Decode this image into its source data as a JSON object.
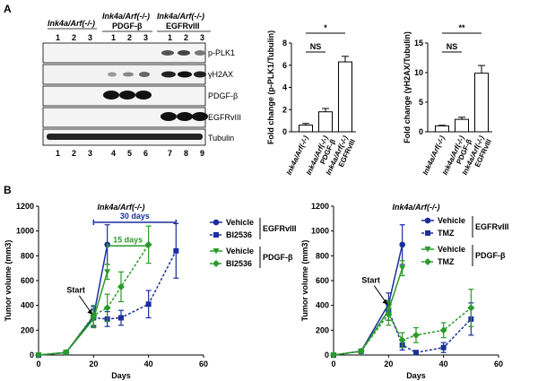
{
  "panel_a": {
    "letter": "A",
    "groups": [
      {
        "label": "Ink4a/Arf(-/-)",
        "lanes": [
          "1",
          "2",
          "3"
        ],
        "sublabel": ""
      },
      {
        "label": "Ink4a/Arf(-/-)",
        "lanes": [
          "1",
          "2",
          "3"
        ],
        "sublabel": "PDGF-β"
      },
      {
        "label": "Ink4a/Arf(-/-)",
        "lanes": [
          "1",
          "2",
          "3"
        ],
        "sublabel": "EGFRvIII"
      }
    ],
    "bands": [
      "p-PLK1",
      "γH2AX",
      "PDGF-β",
      "EGFRvIII",
      "Tubulin"
    ],
    "bottom_lanes": [
      "1",
      "2",
      "3",
      "4",
      "5",
      "6",
      "7",
      "8",
      "9"
    ]
  },
  "panel_b": {
    "letter": "B"
  },
  "colors": {
    "vehicle_egfr": "#1c2e9c",
    "bi_egfr": "#1c2e9c",
    "vehicle_pdgf": "#2a9a2a",
    "bi_pdgf": "#2a9a2a",
    "bar": "#ffffff",
    "axis": "#000000"
  },
  "chart_data": [
    {
      "type": "bar",
      "ylabel": "Fold change (p-PLK1/Tubulin)",
      "ylim": [
        0,
        8
      ],
      "yticks": [
        "0",
        "2",
        "4",
        "6",
        "8"
      ],
      "categories": [
        "Ink4a/Arf(-/-)",
        "Ink4a/Arf(-/-) PDGF-β",
        "Ink4a/Arf(-/-) EGFRvIII"
      ],
      "values": [
        0.6,
        1.8,
        6.3
      ],
      "errors": [
        0.15,
        0.3,
        0.5
      ],
      "annotations": [
        {
          "from": 0,
          "to": 1,
          "text": "NS"
        },
        {
          "from": 0,
          "to": 2,
          "text": "*"
        }
      ]
    },
    {
      "type": "bar",
      "ylabel": "Fold change (γH2AX/Tubulin)",
      "ylim": [
        0,
        15
      ],
      "yticks": [
        "0",
        "5",
        "10",
        "15"
      ],
      "categories": [
        "Ink4a/Arf(-/-)",
        "Ink4a/Arf(-/-) PDGF-β",
        "Ink4a/Arf(-/-) EGFRvIII"
      ],
      "values": [
        1.0,
        2.1,
        9.9
      ],
      "errors": [
        0.1,
        0.35,
        1.3
      ],
      "annotations": [
        {
          "from": 0,
          "to": 1,
          "text": "NS"
        },
        {
          "from": 0,
          "to": 2,
          "text": "**"
        }
      ]
    },
    {
      "type": "line",
      "title": "Ink4a/Arf(-/-)",
      "xlabel": "Days",
      "ylabel": "Tumor volume (mm3)",
      "xlim": [
        0,
        60
      ],
      "ylim": [
        0,
        1200
      ],
      "xticks": [
        "0",
        "20",
        "40",
        "60"
      ],
      "yticks": [
        "0",
        "200",
        "400",
        "600",
        "800",
        "1000",
        "1200"
      ],
      "annotations": [
        {
          "text": "Start",
          "x": 20,
          "y": 320
        },
        {
          "text": "30 days",
          "x1": 20,
          "x2": 50,
          "y": 1070
        },
        {
          "text": "15 days",
          "x1": 25,
          "x2": 40,
          "y": 880
        }
      ],
      "series": [
        {
          "name": "Vehicle",
          "group": "EGFRvIII",
          "color": "#1c2e9c",
          "marker": "circle",
          "dashed": false,
          "x": [
            0,
            10,
            20,
            25
          ],
          "y": [
            0,
            20,
            310,
            890
          ],
          "err": [
            0,
            5,
            80,
            160
          ]
        },
        {
          "name": "BI2536",
          "group": "EGFRvIII",
          "color": "#1c2e9c",
          "marker": "square",
          "dashed": true,
          "x": [
            0,
            10,
            20,
            25,
            30,
            40,
            50
          ],
          "y": [
            0,
            20,
            300,
            290,
            300,
            410,
            840
          ],
          "err": [
            0,
            5,
            70,
            60,
            60,
            110,
            220
          ]
        },
        {
          "name": "Vehicle",
          "group": "PDGF-β",
          "color": "#2a9a2a",
          "marker": "triangle",
          "dashed": false,
          "x": [
            0,
            10,
            20,
            25
          ],
          "y": [
            0,
            20,
            290,
            670
          ],
          "err": [
            0,
            5,
            70,
            60
          ]
        },
        {
          "name": "BI2536",
          "group": "PDGF-β",
          "color": "#2a9a2a",
          "marker": "diamond",
          "dashed": true,
          "x": [
            0,
            10,
            20,
            25,
            30,
            40
          ],
          "y": [
            0,
            20,
            320,
            380,
            550,
            890
          ],
          "err": [
            0,
            5,
            80,
            110,
            120,
            150
          ]
        }
      ]
    },
    {
      "type": "line",
      "title": "Ink4a/Arf(-/-)",
      "xlabel": "Days",
      "ylabel": "Tumor volume (mm3)",
      "xlim": [
        0,
        60
      ],
      "ylim": [
        0,
        1200
      ],
      "xticks": [
        "0",
        "20",
        "40",
        "60"
      ],
      "yticks": [
        "0",
        "200",
        "400",
        "600",
        "800",
        "1000",
        "1200"
      ],
      "annotations": [
        {
          "text": "Start",
          "x": 20,
          "y": 400
        }
      ],
      "series": [
        {
          "name": "Vehicle",
          "group": "EGFRvIII",
          "color": "#1c2e9c",
          "marker": "circle",
          "dashed": false,
          "x": [
            0,
            10,
            20,
            25
          ],
          "y": [
            0,
            30,
            410,
            890
          ],
          "err": [
            0,
            5,
            90,
            160
          ]
        },
        {
          "name": "TMZ",
          "group": "EGFRvIII",
          "color": "#1c2e9c",
          "marker": "square",
          "dashed": true,
          "x": [
            0,
            10,
            20,
            25,
            30,
            40,
            50
          ],
          "y": [
            0,
            30,
            360,
            80,
            20,
            60,
            290
          ],
          "err": [
            0,
            5,
            80,
            40,
            15,
            40,
            130
          ]
        },
        {
          "name": "Vehicle",
          "group": "PDGF-β",
          "color": "#2a9a2a",
          "marker": "triangle",
          "dashed": false,
          "x": [
            0,
            10,
            20,
            25
          ],
          "y": [
            0,
            30,
            360,
            700
          ],
          "err": [
            0,
            5,
            80,
            60
          ]
        },
        {
          "name": "TMZ",
          "group": "PDGF-β",
          "color": "#2a9a2a",
          "marker": "diamond",
          "dashed": true,
          "x": [
            0,
            10,
            20,
            25,
            30,
            40,
            50
          ],
          "y": [
            0,
            30,
            330,
            120,
            160,
            200,
            380
          ],
          "err": [
            0,
            5,
            90,
            60,
            60,
            60,
            150
          ]
        }
      ]
    }
  ]
}
